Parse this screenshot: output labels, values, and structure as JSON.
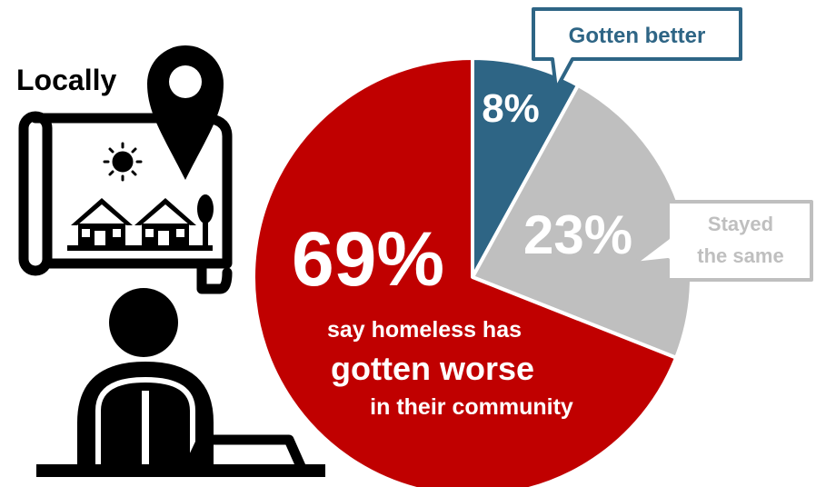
{
  "colors": {
    "worse": "#c00000",
    "better": "#2e6585",
    "same": "#bfbfbf",
    "icon": "#000000",
    "white": "#ffffff"
  },
  "icons": {
    "map": "map-with-houses-icon",
    "pin": "location-pin-icon",
    "sun": "sun-icon",
    "person": "homeless-person-icon",
    "sign": "cardboard-sign-icon"
  },
  "heading": "Locally",
  "chart_data": {
    "type": "pie",
    "slices": [
      {
        "key": "better",
        "label": "Gotten better",
        "value": 8,
        "display": "8%"
      },
      {
        "key": "same",
        "label": "Stayed the same",
        "value": 23,
        "display": "23%"
      },
      {
        "key": "worse",
        "label": "gotten worse",
        "value": 69,
        "display": "69%"
      }
    ],
    "callouts": {
      "better_label": "Gotten better",
      "same_line1": "Stayed",
      "same_line2": "the same",
      "worse_line1": "say homeless has",
      "worse_line2": "gotten worse",
      "worse_line3": "in their community"
    }
  }
}
